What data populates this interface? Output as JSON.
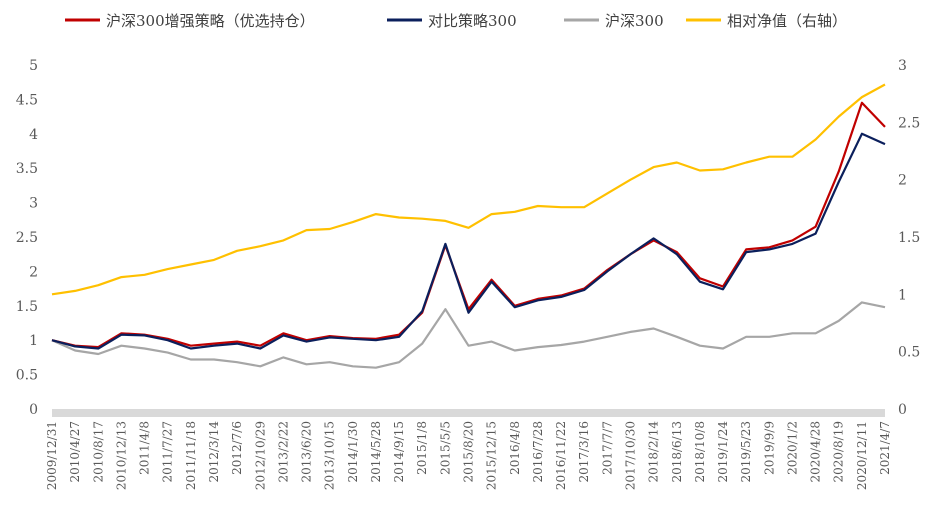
{
  "chart_data": {
    "type": "line",
    "legend": {
      "placement": "top",
      "items": [
        {
          "name": "沪深300增强策略（优选持仓）",
          "color": "#C00000"
        },
        {
          "name": "对比策略300",
          "color": "#0B1F5C"
        },
        {
          "name": "沪深300",
          "color": "#A6A6A6"
        },
        {
          "name": "相对净值（右轴）",
          "color": "#FFC000"
        }
      ]
    },
    "y_left": {
      "min": 0,
      "max": 5,
      "ticks": [
        "0",
        "0.5",
        "1",
        "1.5",
        "2",
        "2.5",
        "3",
        "3.5",
        "4",
        "4.5",
        "5"
      ]
    },
    "y_right": {
      "min": 0,
      "max": 3,
      "ticks": [
        "0",
        "0.5",
        "1",
        "1.5",
        "2",
        "2.5",
        "3"
      ]
    },
    "x_labels": [
      "2009/12/31",
      "2010/4/27",
      "2010/8/17",
      "2010/12/13",
      "2011/4/8",
      "2011/7/27",
      "2011/11/18",
      "2012/3/14",
      "2012/7/6",
      "2012/10/29",
      "2013/2/22",
      "2013/6/20",
      "2013/10/15",
      "2014/1/30",
      "2014/5/28",
      "2014/9/15",
      "2015/1/8",
      "2015/5/5",
      "2015/8/20",
      "2015/12/15",
      "2016/4/8",
      "2016/7/28",
      "2016/11/22",
      "2017/3/16",
      "2017/7/7",
      "2017/10/30",
      "2018/2/14",
      "2018/6/13",
      "2018/10/8",
      "2019/1/24",
      "2019/5/23",
      "2019/9/9",
      "2020/1/2",
      "2020/4/28",
      "2020/8/19",
      "2020/12/11",
      "2021/4/7"
    ],
    "series": [
      {
        "name": "沪深300增强策略（优选持仓）",
        "axis": "left",
        "color": "#C00000",
        "values": [
          1.0,
          0.92,
          0.9,
          1.1,
          1.08,
          1.02,
          0.92,
          0.95,
          0.98,
          0.92,
          1.1,
          1.0,
          1.06,
          1.03,
          1.02,
          1.08,
          1.4,
          2.38,
          1.45,
          1.88,
          1.5,
          1.6,
          1.65,
          1.75,
          2.02,
          2.25,
          2.45,
          2.28,
          1.9,
          1.78,
          2.32,
          2.35,
          2.45,
          2.65,
          3.45,
          4.45,
          4.1
        ]
      },
      {
        "name": "对比策略300",
        "axis": "left",
        "color": "#0B1F5C",
        "values": [
          1.0,
          0.91,
          0.88,
          1.08,
          1.07,
          1.0,
          0.88,
          0.92,
          0.95,
          0.88,
          1.07,
          0.98,
          1.04,
          1.02,
          1.0,
          1.05,
          1.42,
          2.4,
          1.4,
          1.85,
          1.48,
          1.58,
          1.63,
          1.73,
          2.0,
          2.25,
          2.48,
          2.25,
          1.85,
          1.74,
          2.28,
          2.32,
          2.4,
          2.55,
          3.3,
          4.0,
          3.85
        ]
      },
      {
        "name": "沪深300",
        "axis": "left",
        "color": "#A6A6A6",
        "values": [
          1.0,
          0.85,
          0.8,
          0.92,
          0.88,
          0.82,
          0.72,
          0.72,
          0.68,
          0.62,
          0.75,
          0.65,
          0.68,
          0.62,
          0.6,
          0.68,
          0.95,
          1.45,
          0.92,
          0.98,
          0.85,
          0.9,
          0.93,
          0.98,
          1.05,
          1.12,
          1.17,
          1.05,
          0.92,
          0.88,
          1.05,
          1.05,
          1.1,
          1.1,
          1.28,
          1.55,
          1.48
        ]
      },
      {
        "name": "相对净值（右轴）",
        "axis": "right",
        "color": "#FFC000",
        "values": [
          1.0,
          1.03,
          1.08,
          1.15,
          1.17,
          1.22,
          1.26,
          1.3,
          1.38,
          1.42,
          1.47,
          1.56,
          1.57,
          1.63,
          1.7,
          1.67,
          1.66,
          1.64,
          1.58,
          1.7,
          1.72,
          1.77,
          1.76,
          1.76,
          1.88,
          2.0,
          2.11,
          2.15,
          2.08,
          2.09,
          2.15,
          2.2,
          2.2,
          2.35,
          2.55,
          2.72,
          2.83
        ]
      }
    ]
  }
}
